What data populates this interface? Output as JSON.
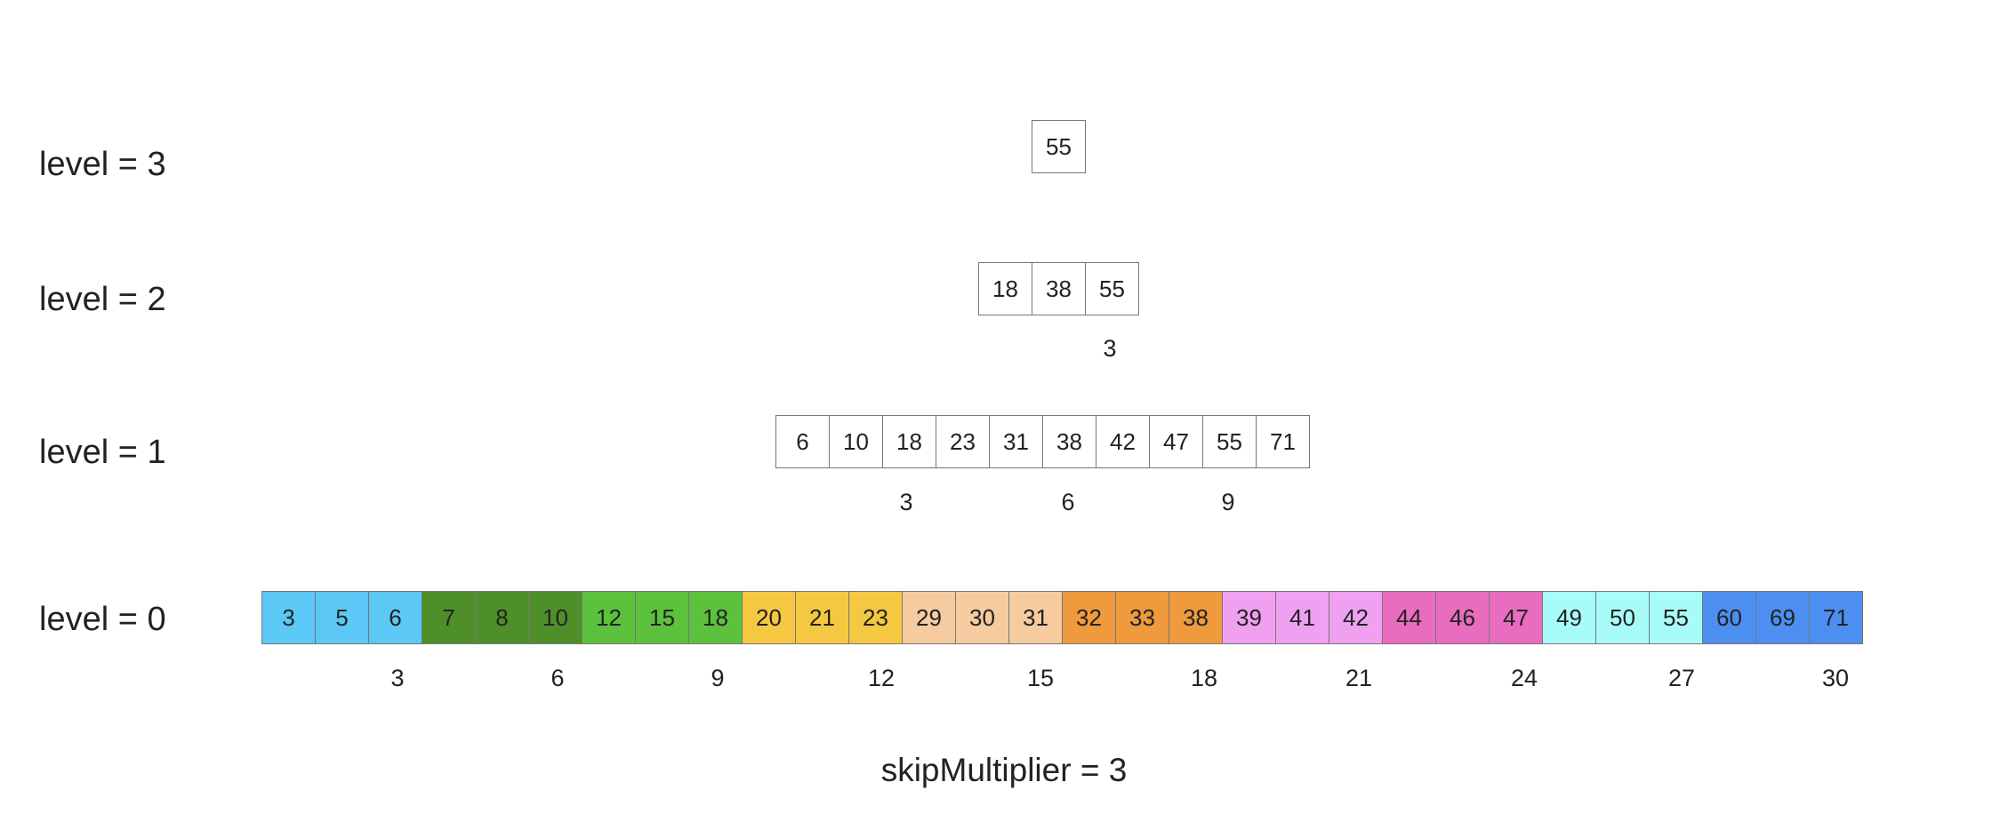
{
  "levels": [
    {
      "label": "level = 3",
      "values": [
        "55"
      ],
      "skips": []
    },
    {
      "label": "level = 2",
      "values": [
        "18",
        "38",
        "55"
      ],
      "skips": [
        "3"
      ]
    },
    {
      "label": "level = 1",
      "values": [
        "6",
        "10",
        "18",
        "23",
        "31",
        "38",
        "42",
        "47",
        "55",
        "71"
      ],
      "skips": [
        "3",
        "6",
        "9"
      ]
    },
    {
      "label": "level = 0",
      "values": [
        "3",
        "5",
        "6",
        "7",
        "8",
        "10",
        "12",
        "15",
        "18",
        "20",
        "21",
        "23",
        "29",
        "30",
        "31",
        "32",
        "33",
        "38",
        "39",
        "41",
        "42",
        "44",
        "46",
        "47",
        "49",
        "50",
        "55",
        "60",
        "69",
        "71"
      ],
      "skips": [
        "3",
        "6",
        "9",
        "12",
        "15",
        "18",
        "21",
        "24",
        "27",
        "30"
      ]
    }
  ],
  "group_colors": [
    "#5bc8f5",
    "#4f8f2a",
    "#5cc23e",
    "#f5c842",
    "#f7cba0",
    "#ef9a3c",
    "#f0a0f0",
    "#e86dbe",
    "#a8fcf8",
    "#4d8ff0"
  ],
  "caption": "skipMultiplier = 3"
}
